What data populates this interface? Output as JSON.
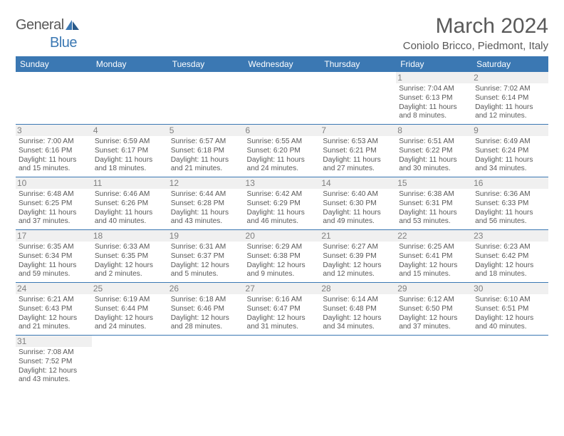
{
  "logo": {
    "text1": "General",
    "text2": "Blue"
  },
  "title": "March 2024",
  "location": "Coniolo Bricco, Piedmont, Italy",
  "colors": {
    "header_bg": "#3b78b3",
    "text": "#595959",
    "daybg": "#f0f0f0"
  },
  "daynames": [
    "Sunday",
    "Monday",
    "Tuesday",
    "Wednesday",
    "Thursday",
    "Friday",
    "Saturday"
  ],
  "weeks": [
    [
      null,
      null,
      null,
      null,
      null,
      {
        "n": "1",
        "sr": "7:04 AM",
        "ss": "6:13 PM",
        "dl": "11 hours and 8 minutes."
      },
      {
        "n": "2",
        "sr": "7:02 AM",
        "ss": "6:14 PM",
        "dl": "11 hours and 12 minutes."
      }
    ],
    [
      {
        "n": "3",
        "sr": "7:00 AM",
        "ss": "6:16 PM",
        "dl": "11 hours and 15 minutes."
      },
      {
        "n": "4",
        "sr": "6:59 AM",
        "ss": "6:17 PM",
        "dl": "11 hours and 18 minutes."
      },
      {
        "n": "5",
        "sr": "6:57 AM",
        "ss": "6:18 PM",
        "dl": "11 hours and 21 minutes."
      },
      {
        "n": "6",
        "sr": "6:55 AM",
        "ss": "6:20 PM",
        "dl": "11 hours and 24 minutes."
      },
      {
        "n": "7",
        "sr": "6:53 AM",
        "ss": "6:21 PM",
        "dl": "11 hours and 27 minutes."
      },
      {
        "n": "8",
        "sr": "6:51 AM",
        "ss": "6:22 PM",
        "dl": "11 hours and 30 minutes."
      },
      {
        "n": "9",
        "sr": "6:49 AM",
        "ss": "6:24 PM",
        "dl": "11 hours and 34 minutes."
      }
    ],
    [
      {
        "n": "10",
        "sr": "6:48 AM",
        "ss": "6:25 PM",
        "dl": "11 hours and 37 minutes."
      },
      {
        "n": "11",
        "sr": "6:46 AM",
        "ss": "6:26 PM",
        "dl": "11 hours and 40 minutes."
      },
      {
        "n": "12",
        "sr": "6:44 AM",
        "ss": "6:28 PM",
        "dl": "11 hours and 43 minutes."
      },
      {
        "n": "13",
        "sr": "6:42 AM",
        "ss": "6:29 PM",
        "dl": "11 hours and 46 minutes."
      },
      {
        "n": "14",
        "sr": "6:40 AM",
        "ss": "6:30 PM",
        "dl": "11 hours and 49 minutes."
      },
      {
        "n": "15",
        "sr": "6:38 AM",
        "ss": "6:31 PM",
        "dl": "11 hours and 53 minutes."
      },
      {
        "n": "16",
        "sr": "6:36 AM",
        "ss": "6:33 PM",
        "dl": "11 hours and 56 minutes."
      }
    ],
    [
      {
        "n": "17",
        "sr": "6:35 AM",
        "ss": "6:34 PM",
        "dl": "11 hours and 59 minutes."
      },
      {
        "n": "18",
        "sr": "6:33 AM",
        "ss": "6:35 PM",
        "dl": "12 hours and 2 minutes."
      },
      {
        "n": "19",
        "sr": "6:31 AM",
        "ss": "6:37 PM",
        "dl": "12 hours and 5 minutes."
      },
      {
        "n": "20",
        "sr": "6:29 AM",
        "ss": "6:38 PM",
        "dl": "12 hours and 9 minutes."
      },
      {
        "n": "21",
        "sr": "6:27 AM",
        "ss": "6:39 PM",
        "dl": "12 hours and 12 minutes."
      },
      {
        "n": "22",
        "sr": "6:25 AM",
        "ss": "6:41 PM",
        "dl": "12 hours and 15 minutes."
      },
      {
        "n": "23",
        "sr": "6:23 AM",
        "ss": "6:42 PM",
        "dl": "12 hours and 18 minutes."
      }
    ],
    [
      {
        "n": "24",
        "sr": "6:21 AM",
        "ss": "6:43 PM",
        "dl": "12 hours and 21 minutes."
      },
      {
        "n": "25",
        "sr": "6:19 AM",
        "ss": "6:44 PM",
        "dl": "12 hours and 24 minutes."
      },
      {
        "n": "26",
        "sr": "6:18 AM",
        "ss": "6:46 PM",
        "dl": "12 hours and 28 minutes."
      },
      {
        "n": "27",
        "sr": "6:16 AM",
        "ss": "6:47 PM",
        "dl": "12 hours and 31 minutes."
      },
      {
        "n": "28",
        "sr": "6:14 AM",
        "ss": "6:48 PM",
        "dl": "12 hours and 34 minutes."
      },
      {
        "n": "29",
        "sr": "6:12 AM",
        "ss": "6:50 PM",
        "dl": "12 hours and 37 minutes."
      },
      {
        "n": "30",
        "sr": "6:10 AM",
        "ss": "6:51 PM",
        "dl": "12 hours and 40 minutes."
      }
    ],
    [
      {
        "n": "31",
        "sr": "7:08 AM",
        "ss": "7:52 PM",
        "dl": "12 hours and 43 minutes."
      },
      null,
      null,
      null,
      null,
      null,
      null
    ]
  ],
  "labels": {
    "sunrise": "Sunrise: ",
    "sunset": "Sunset: ",
    "daylight": "Daylight: "
  }
}
